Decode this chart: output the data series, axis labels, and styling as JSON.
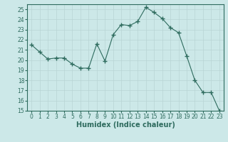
{
  "x": [
    0,
    1,
    2,
    3,
    4,
    5,
    6,
    7,
    8,
    9,
    10,
    11,
    12,
    13,
    14,
    15,
    16,
    17,
    18,
    19,
    20,
    21,
    22,
    23
  ],
  "y": [
    21.5,
    20.8,
    20.1,
    20.2,
    20.2,
    19.6,
    19.2,
    19.2,
    21.6,
    19.9,
    22.5,
    23.5,
    23.4,
    23.8,
    25.2,
    24.7,
    24.1,
    23.2,
    22.7,
    20.4,
    18.0,
    16.8,
    16.8,
    15.0
  ],
  "line_color": "#2e6b5e",
  "marker": "+",
  "marker_size": 4,
  "bg_color": "#cce8e8",
  "grid_major_color": "#b8d4d4",
  "grid_minor_color": "#d0e8e8",
  "xlabel": "Humidex (Indice chaleur)",
  "ylim": [
    15,
    25.5
  ],
  "xlim": [
    -0.5,
    23.5
  ],
  "yticks": [
    15,
    16,
    17,
    18,
    19,
    20,
    21,
    22,
    23,
    24,
    25
  ],
  "xticks": [
    0,
    1,
    2,
    3,
    4,
    5,
    6,
    7,
    8,
    9,
    10,
    11,
    12,
    13,
    14,
    15,
    16,
    17,
    18,
    19,
    20,
    21,
    22,
    23
  ],
  "tick_fontsize": 5.5,
  "xlabel_fontsize": 7,
  "spine_color": "#2e6b5e"
}
